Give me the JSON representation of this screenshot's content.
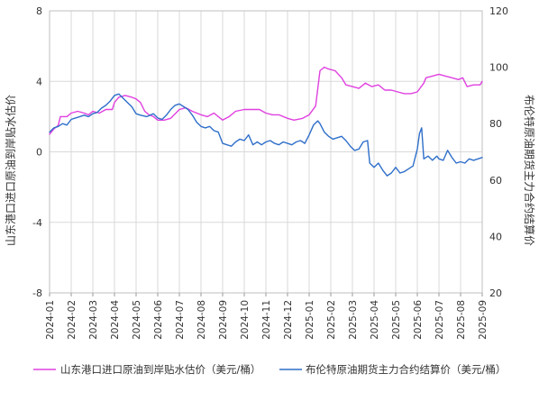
{
  "chart_data": {
    "type": "line",
    "x_ticks": [
      "2024-01",
      "2024-02",
      "2024-03",
      "2024-04",
      "2024-05",
      "2024-06",
      "2024-07",
      "2024-08",
      "2024-09",
      "2024-10",
      "2024-11",
      "2024-12",
      "2025-01",
      "2025-02",
      "2025-03",
      "2025-04",
      "2025-05",
      "2025-06",
      "2025-07",
      "2025-08",
      "2025-09"
    ],
    "left_axis": {
      "label": "山东港口进口原油到岸贴水估价",
      "ylim": [
        -8,
        8
      ],
      "ticks": [
        "-8",
        "-4",
        "0",
        "4",
        "8"
      ]
    },
    "right_axis": {
      "label": "布伦特原油期货主力合约结算价",
      "ylim": [
        20,
        120
      ],
      "ticks": [
        "20",
        "40",
        "60",
        "80",
        "100",
        "120"
      ]
    },
    "grid": true,
    "legend_position": "bottom",
    "series": [
      {
        "name": "山东港口进口原油到岸贴水估价（美元/桶）",
        "axis": "left",
        "color": "#e040e0",
        "points": [
          [
            0,
            1.0
          ],
          [
            0.2,
            1.3
          ],
          [
            0.4,
            1.5
          ],
          [
            0.5,
            2.0
          ],
          [
            0.8,
            2.0
          ],
          [
            1.0,
            2.2
          ],
          [
            1.3,
            2.3
          ],
          [
            1.6,
            2.2
          ],
          [
            1.8,
            2.1
          ],
          [
            2.0,
            2.3
          ],
          [
            2.3,
            2.2
          ],
          [
            2.6,
            2.4
          ],
          [
            2.9,
            2.4
          ],
          [
            3.0,
            2.8
          ],
          [
            3.2,
            3.1
          ],
          [
            3.5,
            3.2
          ],
          [
            3.8,
            3.1
          ],
          [
            4.0,
            3.0
          ],
          [
            4.2,
            2.8
          ],
          [
            4.4,
            2.3
          ],
          [
            4.6,
            2.1
          ],
          [
            4.8,
            2.0
          ],
          [
            5.0,
            1.8
          ],
          [
            5.3,
            1.8
          ],
          [
            5.6,
            1.9
          ],
          [
            6.0,
            2.4
          ],
          [
            6.3,
            2.5
          ],
          [
            6.6,
            2.3
          ],
          [
            7.0,
            2.1
          ],
          [
            7.3,
            2.0
          ],
          [
            7.6,
            2.2
          ],
          [
            8.0,
            1.8
          ],
          [
            8.3,
            2.0
          ],
          [
            8.6,
            2.3
          ],
          [
            9.0,
            2.4
          ],
          [
            9.3,
            2.4
          ],
          [
            9.7,
            2.4
          ],
          [
            10.0,
            2.2
          ],
          [
            10.3,
            2.1
          ],
          [
            10.6,
            2.1
          ],
          [
            11.0,
            1.9
          ],
          [
            11.3,
            1.8
          ],
          [
            11.7,
            1.9
          ],
          [
            12.0,
            2.1
          ],
          [
            12.3,
            2.6
          ],
          [
            12.4,
            3.6
          ],
          [
            12.5,
            4.6
          ],
          [
            12.7,
            4.8
          ],
          [
            12.9,
            4.7
          ],
          [
            13.2,
            4.6
          ],
          [
            13.5,
            4.2
          ],
          [
            13.7,
            3.8
          ],
          [
            14.0,
            3.7
          ],
          [
            14.3,
            3.6
          ],
          [
            14.6,
            3.9
          ],
          [
            14.9,
            3.7
          ],
          [
            15.2,
            3.8
          ],
          [
            15.5,
            3.5
          ],
          [
            15.8,
            3.5
          ],
          [
            16.1,
            3.4
          ],
          [
            16.4,
            3.3
          ],
          [
            16.7,
            3.3
          ],
          [
            17.0,
            3.4
          ],
          [
            17.3,
            3.9
          ],
          [
            17.4,
            4.2
          ],
          [
            17.7,
            4.3
          ],
          [
            18.0,
            4.4
          ],
          [
            18.3,
            4.3
          ],
          [
            18.6,
            4.2
          ],
          [
            18.9,
            4.1
          ],
          [
            19.1,
            4.2
          ],
          [
            19.3,
            3.7
          ],
          [
            19.6,
            3.8
          ],
          [
            19.9,
            3.8
          ],
          [
            20.0,
            4.0
          ]
        ]
      },
      {
        "name": "布伦特原油期货主力合约结算价（美元/桶）",
        "axis": "right",
        "color": "#2f6fca",
        "points": [
          [
            0,
            77.0
          ],
          [
            0.2,
            78.5
          ],
          [
            0.4,
            79.0
          ],
          [
            0.6,
            80.0
          ],
          [
            0.8,
            79.5
          ],
          [
            1.0,
            81.5
          ],
          [
            1.2,
            82.0
          ],
          [
            1.4,
            82.5
          ],
          [
            1.6,
            83.0
          ],
          [
            1.8,
            82.5
          ],
          [
            2.0,
            83.5
          ],
          [
            2.2,
            84.0
          ],
          [
            2.4,
            85.5
          ],
          [
            2.6,
            86.5
          ],
          [
            2.8,
            88.0
          ],
          [
            3.0,
            90.0
          ],
          [
            3.2,
            90.5
          ],
          [
            3.4,
            89.0
          ],
          [
            3.6,
            87.5
          ],
          [
            3.8,
            86.0
          ],
          [
            4.0,
            83.5
          ],
          [
            4.2,
            83.0
          ],
          [
            4.5,
            82.5
          ],
          [
            4.8,
            83.5
          ],
          [
            5.0,
            82.0
          ],
          [
            5.2,
            81.5
          ],
          [
            5.4,
            83.0
          ],
          [
            5.6,
            85.0
          ],
          [
            5.8,
            86.5
          ],
          [
            6.0,
            87.0
          ],
          [
            6.2,
            86.0
          ],
          [
            6.4,
            85.0
          ],
          [
            6.6,
            83.0
          ],
          [
            6.8,
            80.5
          ],
          [
            7.0,
            79.0
          ],
          [
            7.2,
            78.5
          ],
          [
            7.4,
            79.0
          ],
          [
            7.6,
            77.5
          ],
          [
            7.8,
            77.0
          ],
          [
            8.0,
            73.0
          ],
          [
            8.2,
            72.5
          ],
          [
            8.4,
            72.0
          ],
          [
            8.6,
            73.5
          ],
          [
            8.8,
            74.5
          ],
          [
            9.0,
            74.0
          ],
          [
            9.2,
            76.0
          ],
          [
            9.4,
            72.5
          ],
          [
            9.6,
            73.5
          ],
          [
            9.8,
            72.5
          ],
          [
            10.0,
            73.5
          ],
          [
            10.2,
            74.0
          ],
          [
            10.4,
            73.0
          ],
          [
            10.6,
            72.5
          ],
          [
            10.8,
            73.5
          ],
          [
            11.0,
            73.0
          ],
          [
            11.2,
            72.5
          ],
          [
            11.4,
            73.5
          ],
          [
            11.6,
            74.0
          ],
          [
            11.8,
            73.0
          ],
          [
            12.0,
            76.0
          ],
          [
            12.2,
            79.5
          ],
          [
            12.4,
            81.0
          ],
          [
            12.5,
            80.0
          ],
          [
            12.7,
            77.0
          ],
          [
            12.9,
            75.5
          ],
          [
            13.1,
            74.5
          ],
          [
            13.3,
            75.0
          ],
          [
            13.5,
            75.5
          ],
          [
            13.7,
            74.0
          ],
          [
            13.9,
            72.0
          ],
          [
            14.1,
            70.5
          ],
          [
            14.3,
            71.0
          ],
          [
            14.5,
            73.5
          ],
          [
            14.7,
            74.0
          ],
          [
            14.8,
            66.0
          ],
          [
            15.0,
            64.5
          ],
          [
            15.2,
            66.0
          ],
          [
            15.4,
            63.5
          ],
          [
            15.6,
            61.5
          ],
          [
            15.8,
            62.5
          ],
          [
            16.0,
            64.5
          ],
          [
            16.2,
            62.5
          ],
          [
            16.4,
            63.0
          ],
          [
            16.6,
            64.0
          ],
          [
            16.8,
            65.0
          ],
          [
            16.9,
            68.0
          ],
          [
            17.0,
            71.0
          ],
          [
            17.1,
            76.5
          ],
          [
            17.2,
            78.5
          ],
          [
            17.3,
            67.5
          ],
          [
            17.5,
            68.5
          ],
          [
            17.7,
            67.0
          ],
          [
            17.9,
            68.5
          ],
          [
            18.0,
            67.5
          ],
          [
            18.2,
            67.0
          ],
          [
            18.4,
            70.5
          ],
          [
            18.6,
            68.0
          ],
          [
            18.8,
            66.0
          ],
          [
            19.0,
            66.5
          ],
          [
            19.2,
            66.0
          ],
          [
            19.4,
            67.5
          ],
          [
            19.6,
            67.0
          ],
          [
            19.8,
            67.5
          ],
          [
            20.0,
            68.0
          ]
        ]
      }
    ]
  }
}
